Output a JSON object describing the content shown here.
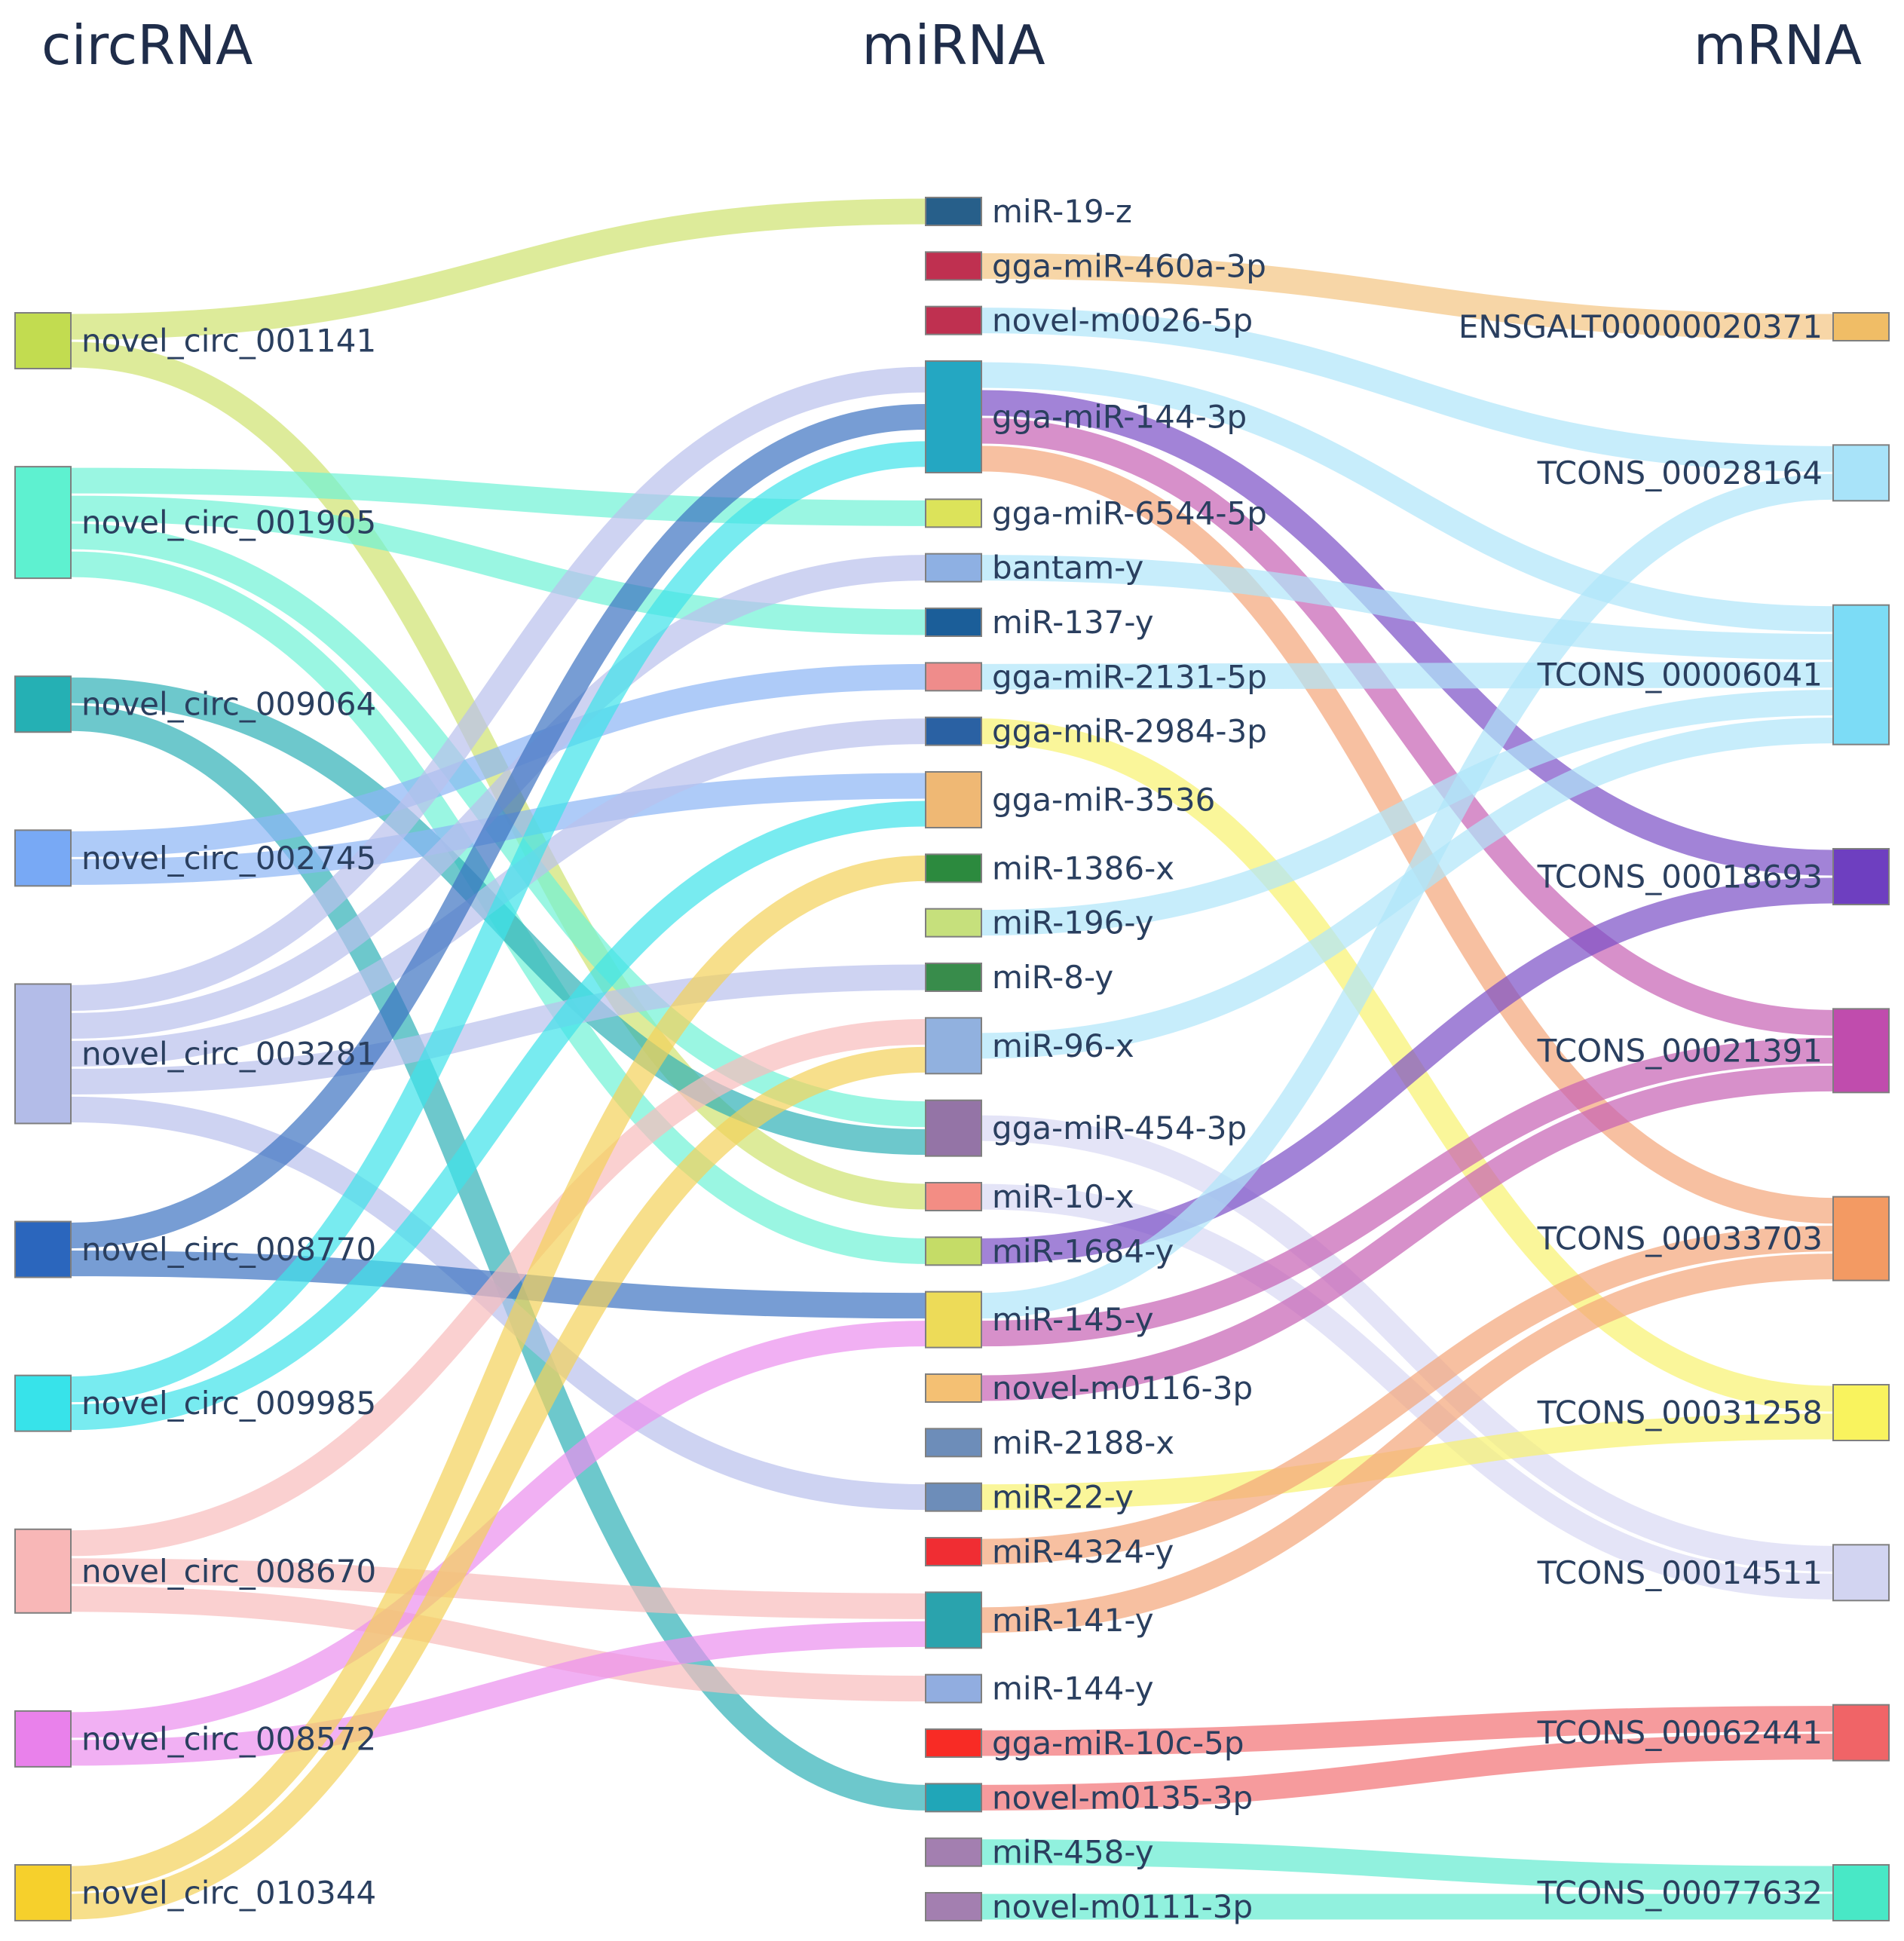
{
  "headers": {
    "circrna": "circRNA",
    "mirna": "miRNA",
    "mrna": "mRNA"
  },
  "circrna": [
    {
      "id": "c1",
      "label": "novel_circ_001141",
      "color": "#c2dc50"
    },
    {
      "id": "c2",
      "label": "novel_circ_001905",
      "color": "#5ef1d0"
    },
    {
      "id": "c3",
      "label": "novel_circ_009064",
      "color": "#25b0b4"
    },
    {
      "id": "c4",
      "label": "novel_circ_002745",
      "color": "#78a9f5"
    },
    {
      "id": "c5",
      "label": "novel_circ_003281",
      "color": "#b3bce8"
    },
    {
      "id": "c6",
      "label": "novel_circ_008770",
      "color": "#2b66bd"
    },
    {
      "id": "c7",
      "label": "novel_circ_009985",
      "color": "#37e3ea"
    },
    {
      "id": "c8",
      "label": "novel_circ_008670",
      "color": "#f8b7b7"
    },
    {
      "id": "c9",
      "label": "novel_circ_008572",
      "color": "#e981eb"
    },
    {
      "id": "c10",
      "label": "novel_circ_010344",
      "color": "#f6d02c"
    }
  ],
  "mirna": [
    {
      "id": "m1",
      "label": "miR-19-z",
      "color": "#275f8a"
    },
    {
      "id": "m2",
      "label": "gga-miR-460a-3p",
      "color": "#bf3050"
    },
    {
      "id": "m3",
      "label": "novel-m0026-5p",
      "color": "#bf3050"
    },
    {
      "id": "m4",
      "label": "gga-miR-144-3p",
      "color": "#24a7c2"
    },
    {
      "id": "m5",
      "label": "gga-miR-6544-5p",
      "color": "#dce35a"
    },
    {
      "id": "m6",
      "label": "bantam-y",
      "color": "#8eb0e3"
    },
    {
      "id": "m7",
      "label": "miR-137-y",
      "color": "#1b5e99"
    },
    {
      "id": "m8",
      "label": "gga-miR-2131-5p",
      "color": "#ef8c8b"
    },
    {
      "id": "m9",
      "label": "gga-miR-2984-3p",
      "color": "#2a61a3"
    },
    {
      "id": "m10",
      "label": "gga-miR-3536",
      "color": "#efb874"
    },
    {
      "id": "m11",
      "label": "miR-1386-x",
      "color": "#2c8a3e"
    },
    {
      "id": "m12",
      "label": "miR-196-y",
      "color": "#c6e07c"
    },
    {
      "id": "m13",
      "label": "miR-8-y",
      "color": "#388c4b"
    },
    {
      "id": "m14",
      "label": "miR-96-x",
      "color": "#91b1df"
    },
    {
      "id": "m15",
      "label": "gga-miR-454-3p",
      "color": "#9474a6"
    },
    {
      "id": "m16",
      "label": "miR-10-x",
      "color": "#f38d84"
    },
    {
      "id": "m17",
      "label": "miR-1684-y",
      "color": "#c5dc67"
    },
    {
      "id": "m18",
      "label": "miR-145-y",
      "color": "#eddb58"
    },
    {
      "id": "m19",
      "label": "novel-m0116-3p",
      "color": "#f4c073"
    },
    {
      "id": "m20",
      "label": "miR-2188-x",
      "color": "#6d8db9"
    },
    {
      "id": "m21",
      "label": "miR-22-y",
      "color": "#6d8db9"
    },
    {
      "id": "m22",
      "label": "miR-4324-y",
      "color": "#f02d33"
    },
    {
      "id": "m23",
      "label": "miR-141-y",
      "color": "#2aa3ad"
    },
    {
      "id": "m24",
      "label": "miR-144-y",
      "color": "#91ade0"
    },
    {
      "id": "m25",
      "label": "gga-miR-10c-5p",
      "color": "#f82b25"
    },
    {
      "id": "m26",
      "label": "novel-m0135-3p",
      "color": "#20a6b8"
    },
    {
      "id": "m27",
      "label": "miR-458-y",
      "color": "#a37fb0"
    },
    {
      "id": "m28",
      "label": "novel-m0111-3p",
      "color": "#a37fb0"
    }
  ],
  "mrna": [
    {
      "id": "r1",
      "label": "ENSGALT00000020371",
      "color": "#f0bd66"
    },
    {
      "id": "r2",
      "label": "TCONS_00028164",
      "color": "#a8e3f9"
    },
    {
      "id": "r3",
      "label": "TCONS_00006041",
      "color": "#7cdcf6"
    },
    {
      "id": "r4",
      "label": "TCONS_00018693",
      "color": "#6e3fc0"
    },
    {
      "id": "r5",
      "label": "TCONS_00021391",
      "color": "#c04cad"
    },
    {
      "id": "r6",
      "label": "TCONS_00033703",
      "color": "#f39a63"
    },
    {
      "id": "r7",
      "label": "TCONS_00031258",
      "color": "#f9f35e"
    },
    {
      "id": "r8",
      "label": "TCONS_00014511",
      "color": "#d2d4f1"
    },
    {
      "id": "r9",
      "label": "TCONS_00062441",
      "color": "#f06467"
    },
    {
      "id": "r10",
      "label": "TCONS_00077632",
      "color": "#48e8c6"
    }
  ],
  "links": [
    {
      "source": "c1",
      "target": "m1",
      "value": 1,
      "color": "#cfe26f"
    },
    {
      "source": "c1",
      "target": "m16",
      "value": 1,
      "color": "#cfe26f"
    },
    {
      "source": "c2",
      "target": "m5",
      "value": 1,
      "color": "#6ff2d5"
    },
    {
      "source": "c2",
      "target": "m7",
      "value": 1,
      "color": "#6ff2d5"
    },
    {
      "source": "c2",
      "target": "m15",
      "value": 1,
      "color": "#6ff2d5"
    },
    {
      "source": "c2",
      "target": "m17",
      "value": 1,
      "color": "#6ff2d5"
    },
    {
      "source": "c3",
      "target": "m15",
      "value": 1,
      "color": "#2fb0b6"
    },
    {
      "source": "c3",
      "target": "m26",
      "value": 1,
      "color": "#2fb0b6"
    },
    {
      "source": "c4",
      "target": "m8",
      "value": 1,
      "color": "#8cb5f5"
    },
    {
      "source": "c4",
      "target": "m10",
      "value": 1,
      "color": "#8cb5f5"
    },
    {
      "source": "c5",
      "target": "m4",
      "value": 1,
      "color": "#b9c0ec"
    },
    {
      "source": "c5",
      "target": "m6",
      "value": 1,
      "color": "#b9c0ec"
    },
    {
      "source": "c5",
      "target": "m9",
      "value": 1,
      "color": "#b9c0ec"
    },
    {
      "source": "c5",
      "target": "m13",
      "value": 1,
      "color": "#b9c0ec"
    },
    {
      "source": "c5",
      "target": "m21",
      "value": 1,
      "color": "#b9c0ec"
    },
    {
      "source": "c6",
      "target": "m4",
      "value": 1,
      "color": "#3d74c2"
    },
    {
      "source": "c6",
      "target": "m18",
      "value": 1,
      "color": "#3d74c2"
    },
    {
      "source": "c7",
      "target": "m4",
      "value": 1,
      "color": "#3fe2ea"
    },
    {
      "source": "c7",
      "target": "m10",
      "value": 1,
      "color": "#3fe2ea"
    },
    {
      "source": "c8",
      "target": "m14",
      "value": 1,
      "color": "#f8bcbc"
    },
    {
      "source": "c8",
      "target": "m23",
      "value": 1,
      "color": "#f8bcbc"
    },
    {
      "source": "c8",
      "target": "m24",
      "value": 1,
      "color": "#f8bcbc"
    },
    {
      "source": "c9",
      "target": "m18",
      "value": 1,
      "color": "#eb8eee"
    },
    {
      "source": "c9",
      "target": "m23",
      "value": 1,
      "color": "#eb8eee"
    },
    {
      "source": "c10",
      "target": "m11",
      "value": 1,
      "color": "#f4d25a"
    },
    {
      "source": "c10",
      "target": "m14",
      "value": 1,
      "color": "#f4d25a"
    },
    {
      "source": "m2",
      "target": "r1",
      "value": 1,
      "color": "#f3c482"
    },
    {
      "source": "m3",
      "target": "r2",
      "value": 1,
      "color": "#afe5fa"
    },
    {
      "source": "m4",
      "target": "r3",
      "value": 1,
      "color": "#afe5fa"
    },
    {
      "source": "m4",
      "target": "r4",
      "value": 1,
      "color": "#7a4fc6"
    },
    {
      "source": "m4",
      "target": "r5",
      "value": 1,
      "color": "#c661b3"
    },
    {
      "source": "m4",
      "target": "r6",
      "value": 1,
      "color": "#f4a579"
    },
    {
      "source": "m6",
      "target": "r3",
      "value": 1,
      "color": "#afe5fa"
    },
    {
      "source": "m8",
      "target": "r3",
      "value": 1,
      "color": "#afe5fa"
    },
    {
      "source": "m9",
      "target": "r7",
      "value": 1,
      "color": "#f8f26f"
    },
    {
      "source": "m12",
      "target": "r3",
      "value": 1,
      "color": "#afe5fa"
    },
    {
      "source": "m14",
      "target": "r3",
      "value": 1,
      "color": "#afe5fa"
    },
    {
      "source": "m15",
      "target": "r8",
      "value": 1,
      "color": "#d8d9f3"
    },
    {
      "source": "m16",
      "target": "r8",
      "value": 1,
      "color": "#d8d9f3"
    },
    {
      "source": "m17",
      "target": "r4",
      "value": 1,
      "color": "#7a4fc6"
    },
    {
      "source": "m18",
      "target": "r5",
      "value": 1,
      "color": "#c661b3"
    },
    {
      "source": "m18",
      "target": "r2",
      "value": 1,
      "color": "#afe5fa"
    },
    {
      "source": "m19",
      "target": "r5",
      "value": 1,
      "color": "#c661b3"
    },
    {
      "source": "m21",
      "target": "r7",
      "value": 1,
      "color": "#f8f26f"
    },
    {
      "source": "m22",
      "target": "r6",
      "value": 1,
      "color": "#f4a579"
    },
    {
      "source": "m23",
      "target": "r6",
      "value": 1,
      "color": "#f4a579"
    },
    {
      "source": "m25",
      "target": "r9",
      "value": 1,
      "color": "#f27074"
    },
    {
      "source": "m26",
      "target": "r9",
      "value": 1,
      "color": "#f27074"
    },
    {
      "source": "m27",
      "target": "r10",
      "value": 1,
      "color": "#63ebd0"
    },
    {
      "source": "m28",
      "target": "r10",
      "value": 1,
      "color": "#63ebd0"
    }
  ]
}
